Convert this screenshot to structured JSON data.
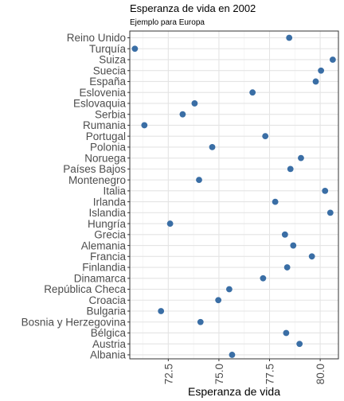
{
  "chart_data": {
    "type": "scatter",
    "title": "Esperanza de vida en 2002",
    "subtitle": "Ejemplo para Europa",
    "xlabel": "Esperanza de vida",
    "ylabel": "",
    "xlim": [
      70.6,
      80.9
    ],
    "x_ticks": [
      72.5,
      75.0,
      77.5,
      80.0
    ],
    "x_tick_labels": [
      "72.5",
      "75.0",
      "77.5",
      "80.0"
    ],
    "grid": true,
    "point_color": "#3a6ea5",
    "categories": [
      "Reino Unido",
      "Turquía",
      "Suiza",
      "Suecia",
      "España",
      "Eslovenia",
      "Eslovaquia",
      "Serbia",
      "Rumania",
      "Portugal",
      "Polonia",
      "Noruega",
      "Países Bajos",
      "Montenegro",
      "Italia",
      "Irlanda",
      "Islandia",
      "Hungría",
      "Grecia",
      "Alemania",
      "Francia",
      "Finlandia",
      "Dinamarca",
      "República Checa",
      "Croacia",
      "Bulgaria",
      "Bosnia y Herzegovina",
      "Bélgica",
      "Austria",
      "Albania"
    ],
    "values": [
      78.47,
      70.85,
      80.62,
      80.04,
      79.78,
      76.66,
      73.8,
      73.21,
      71.32,
      77.29,
      74.67,
      79.05,
      78.53,
      74.02,
      80.24,
      77.78,
      80.5,
      72.59,
      78.26,
      78.67,
      79.59,
      78.37,
      77.18,
      75.51,
      74.97,
      72.14,
      74.09,
      78.32,
      78.98,
      75.65
    ]
  }
}
